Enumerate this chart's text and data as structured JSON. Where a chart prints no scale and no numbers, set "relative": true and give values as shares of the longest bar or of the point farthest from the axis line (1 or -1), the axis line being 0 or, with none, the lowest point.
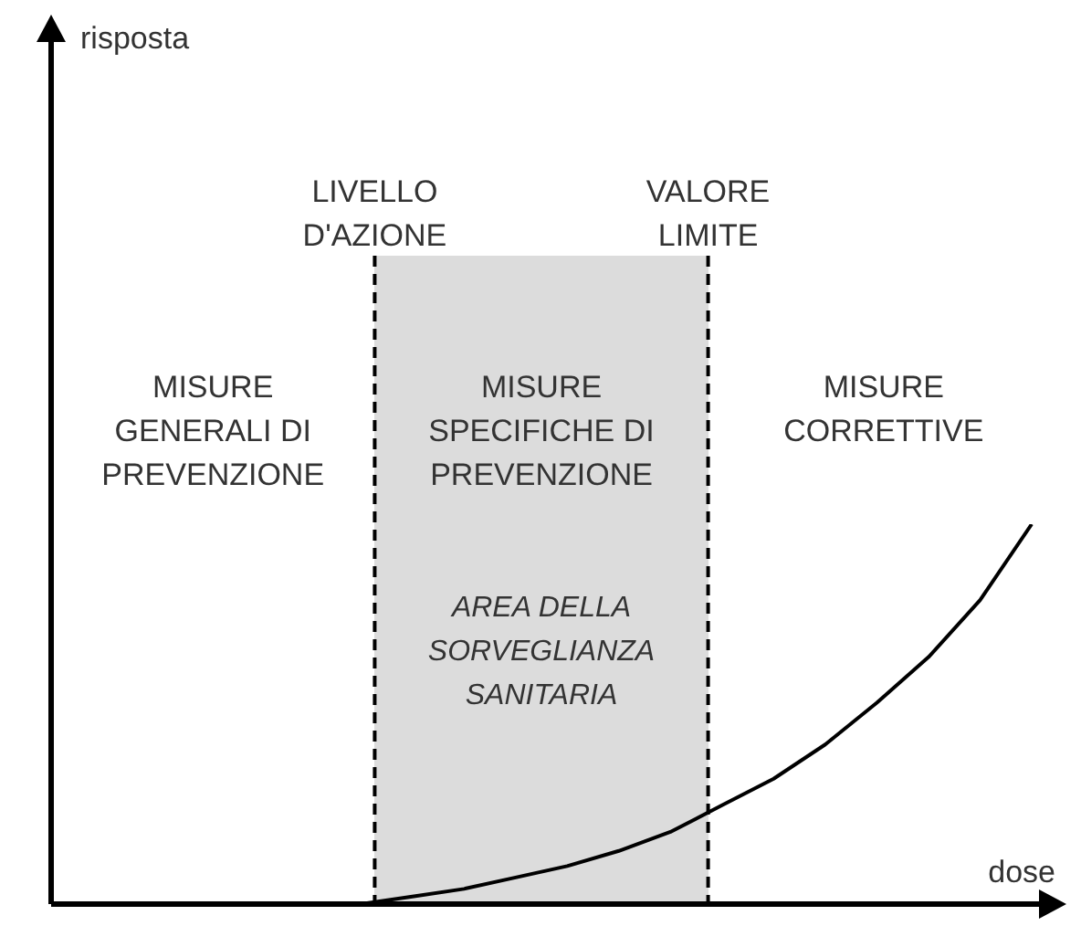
{
  "chart_data": {
    "type": "line",
    "relative": true,
    "xlabel": "dose",
    "marker": "none",
    "line_style": "solid",
    "categories": [
      null,
      null,
      null,
      null,
      null,
      null,
      null,
      null,
      null,
      null,
      null,
      null,
      null,
      null,
      null,
      null,
      null,
      null,
      null,
      null
    ],
    "series": [
      {
        "color": "#000000",
        "values": [
          null,
          null,
          null,
          null,
          null,
          null,
          0,
          0.02,
          0.04,
          0.07,
          0.1,
          0.14,
          0.19,
          0.26,
          0.33,
          0.42,
          0.53,
          0.65,
          0.8,
          1
        ]
      }
    ],
    "ref_lines": [
      {
        "axis": "x",
        "label": "LIVELLO D'AZIONE",
        "color": "#000000",
        "line_style": "dashed"
      },
      {
        "axis": "x",
        "label": "VALORE LIMITE",
        "color": "#000000",
        "line_style": "dashed"
      }
    ],
    "annotations": [
      "MISURE GENERALI DI PREVENZIONE",
      "MISURE SPECIFICHE DI PREVENZIONE",
      "MISURE CORRETTIVE",
      "AREA DELLA SORVEGLIANZA SANITARIA",
      "risposta"
    ]
  }
}
